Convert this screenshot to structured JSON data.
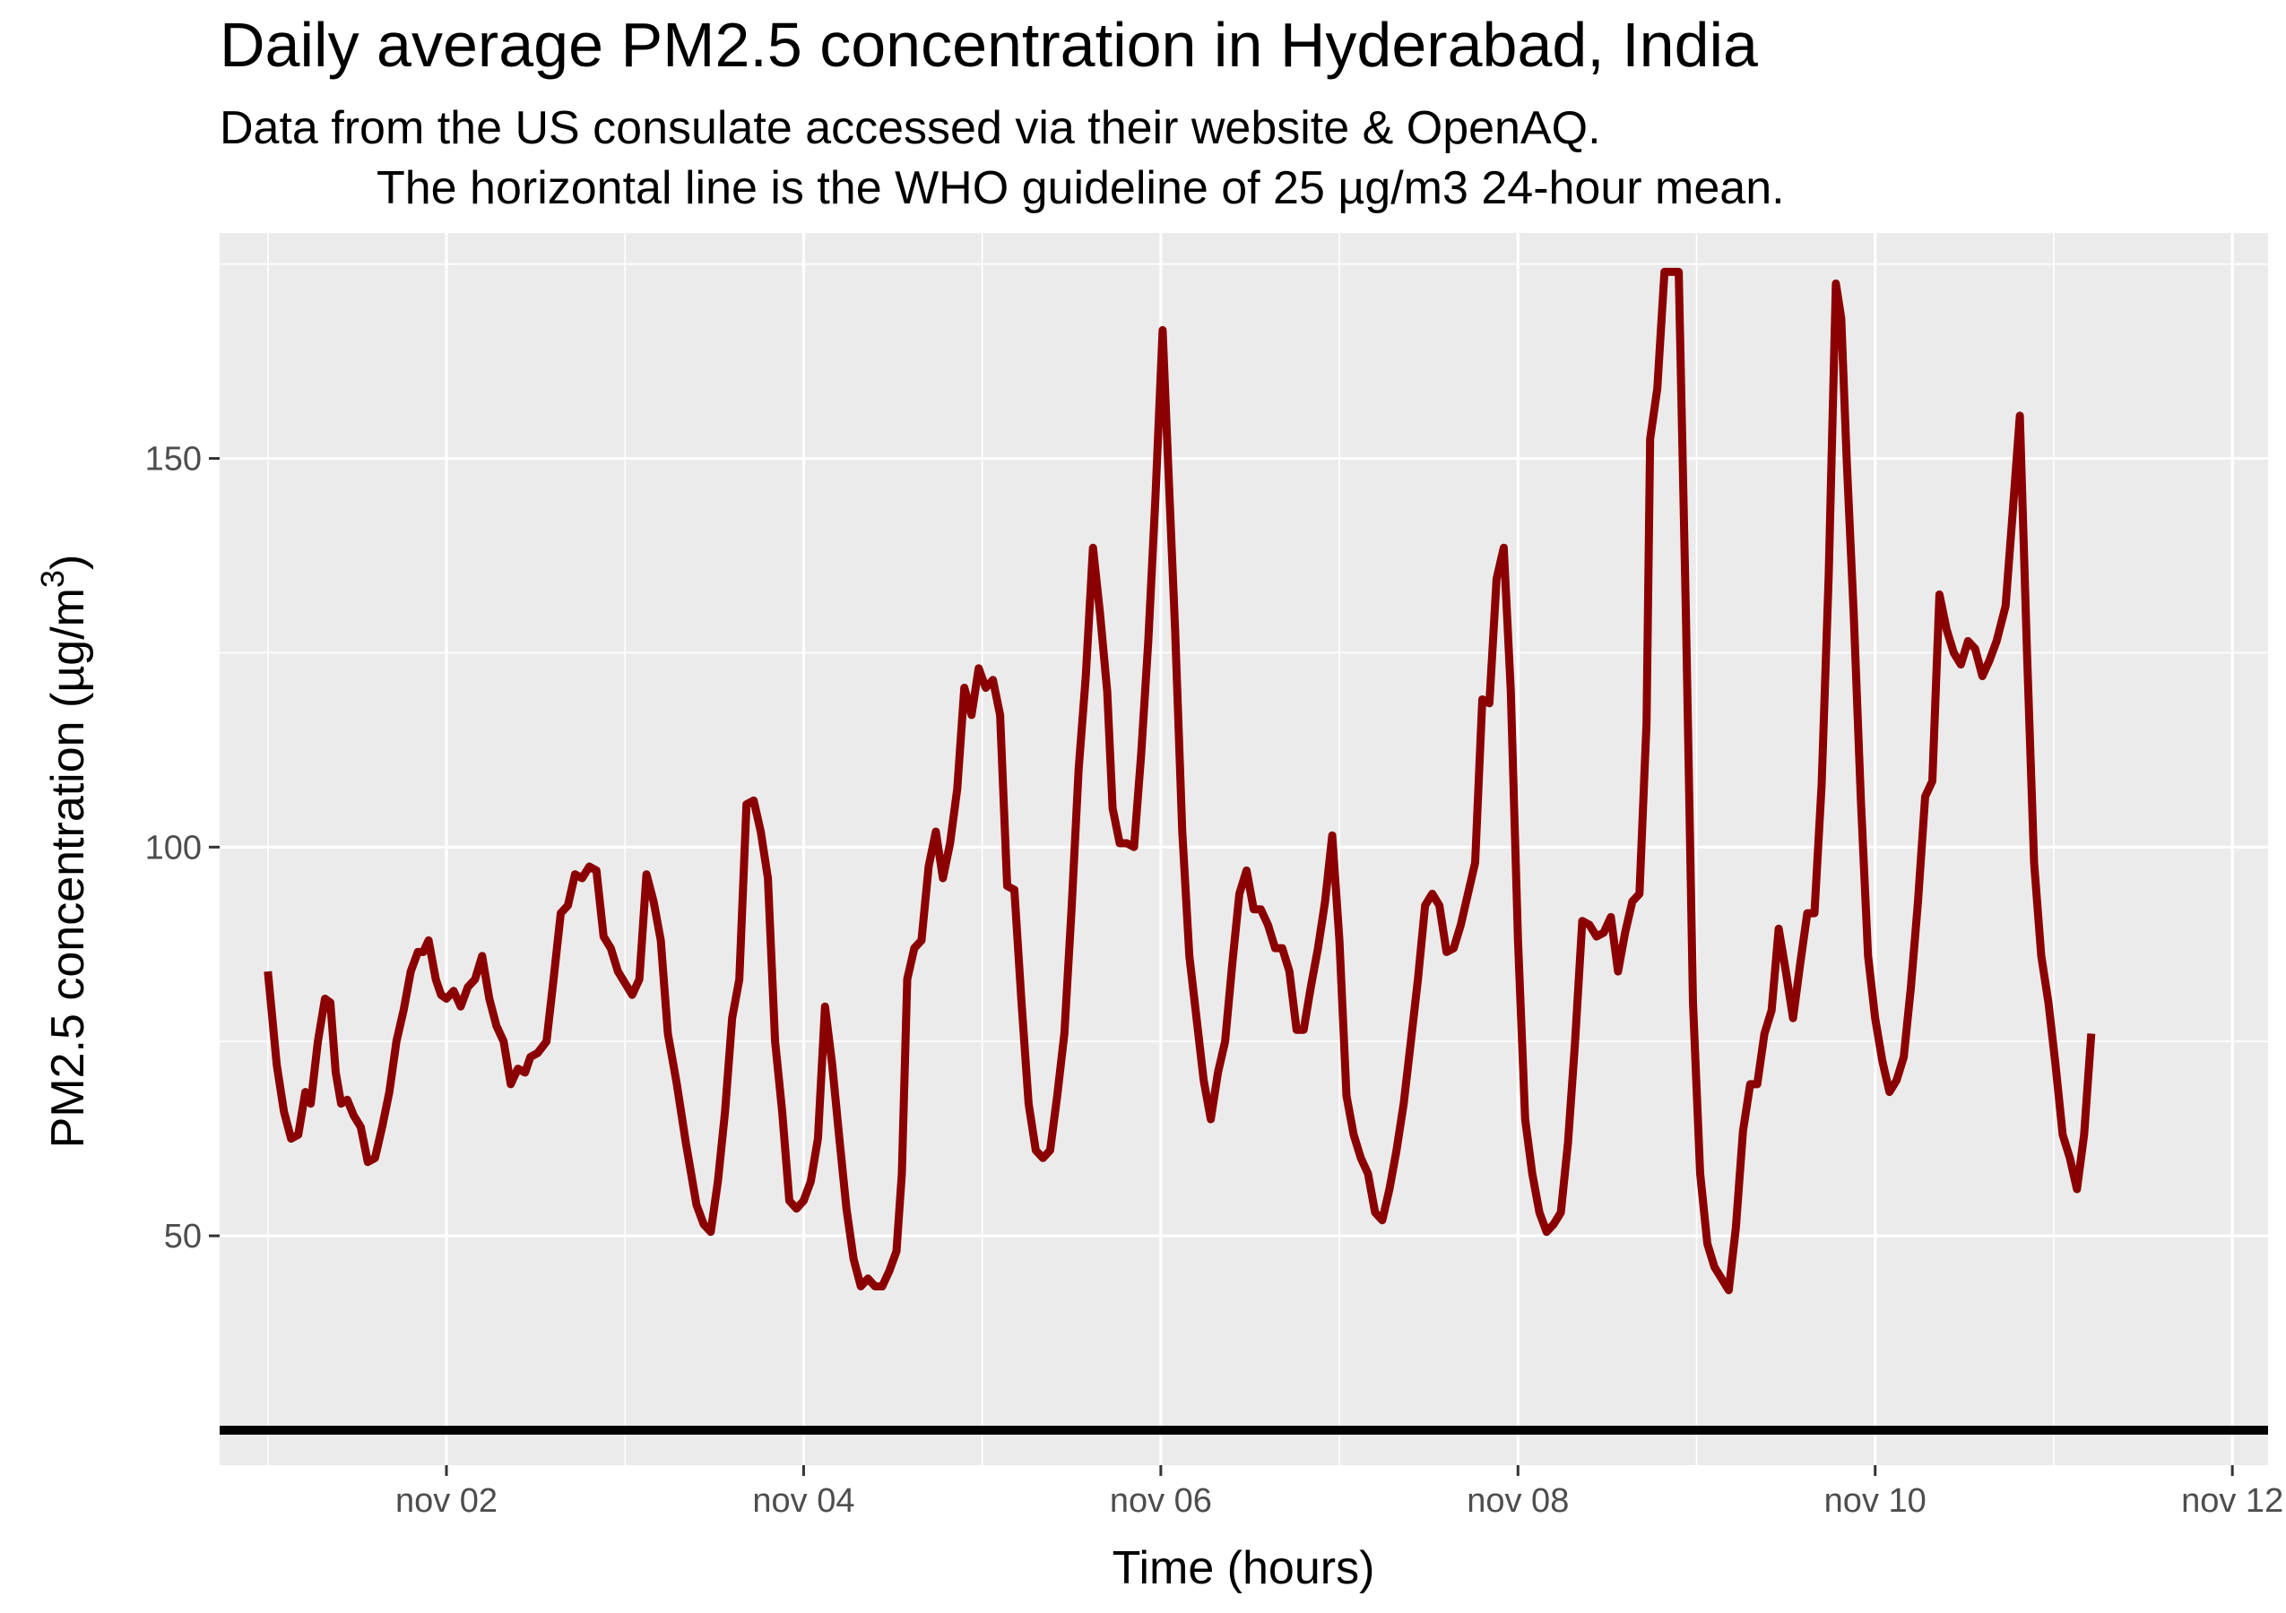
{
  "chart_data": {
    "type": "line",
    "title": "Daily average PM2.5 concentration in Hyderabad, India",
    "subtitle_lines": [
      "Data from the US consulate accessed via their website & OpenAQ.",
      "The horizontal line is the WHO guideline of 25 µg/m3 24-hour mean."
    ],
    "xlabel": "Time (hours)",
    "ylabel": "PM2.5 concentration (µg/m",
    "ylabel_superscript": "3",
    "ylabel_close": ")",
    "x_unit": "days since nov 01 00:00",
    "xlim": [
      -0.27,
      11.2
    ],
    "ylim": [
      20.5,
      179
    ],
    "x_ticks": [
      {
        "value": 1,
        "label": "nov 02"
      },
      {
        "value": 3,
        "label": "nov 04"
      },
      {
        "value": 5,
        "label": "nov 06"
      },
      {
        "value": 7,
        "label": "nov 08"
      },
      {
        "value": 9,
        "label": "nov 10"
      },
      {
        "value": 11,
        "label": "nov 12"
      }
    ],
    "y_ticks": [
      {
        "value": 50,
        "label": "50"
      },
      {
        "value": 100,
        "label": "100"
      },
      {
        "value": 150,
        "label": "150"
      }
    ],
    "reference_line": {
      "y": 25,
      "color": "#000000"
    },
    "series": [
      {
        "color": "#8b0000",
        "points": [
          [
            0.0,
            84
          ],
          [
            0.05,
            72
          ],
          [
            0.09,
            66
          ],
          [
            0.13,
            62.5
          ],
          [
            0.17,
            63
          ],
          [
            0.21,
            68.5
          ],
          [
            0.24,
            67
          ],
          [
            0.28,
            75
          ],
          [
            0.32,
            80.5
          ],
          [
            0.35,
            80
          ],
          [
            0.38,
            71
          ],
          [
            0.41,
            67
          ],
          [
            0.445,
            67.5
          ],
          [
            0.48,
            65.5
          ],
          [
            0.52,
            64
          ],
          [
            0.56,
            59.5
          ],
          [
            0.6,
            60
          ],
          [
            0.64,
            64
          ],
          [
            0.68,
            68.5
          ],
          [
            0.72,
            75
          ],
          [
            0.76,
            79
          ],
          [
            0.8,
            84
          ],
          [
            0.84,
            86.5
          ],
          [
            0.87,
            86.5
          ],
          [
            0.9,
            88
          ],
          [
            0.94,
            83
          ],
          [
            0.97,
            81
          ],
          [
            1.0,
            80.5
          ],
          [
            1.04,
            81.5
          ],
          [
            1.08,
            79.5
          ],
          [
            1.12,
            82
          ],
          [
            1.16,
            83
          ],
          [
            1.2,
            86
          ],
          [
            1.24,
            80.5
          ],
          [
            1.28,
            77
          ],
          [
            1.32,
            75
          ],
          [
            1.36,
            69.5
          ],
          [
            1.4,
            71.5
          ],
          [
            1.44,
            71
          ],
          [
            1.47,
            73
          ],
          [
            1.51,
            73.5
          ],
          [
            1.56,
            75
          ],
          [
            1.6,
            83
          ],
          [
            1.64,
            91.5
          ],
          [
            1.68,
            92.5
          ],
          [
            1.72,
            96.5
          ],
          [
            1.76,
            96
          ],
          [
            1.8,
            97.5
          ],
          [
            1.84,
            97
          ],
          [
            1.88,
            88.5
          ],
          [
            1.92,
            87
          ],
          [
            1.96,
            84
          ],
          [
            2.0,
            82.5
          ],
          [
            2.04,
            81
          ],
          [
            2.08,
            83
          ],
          [
            2.12,
            96.5
          ],
          [
            2.16,
            93
          ],
          [
            2.2,
            88
          ],
          [
            2.24,
            76
          ],
          [
            2.29,
            69.5
          ],
          [
            2.34,
            62
          ],
          [
            2.4,
            54
          ],
          [
            2.44,
            51.5
          ],
          [
            2.48,
            50.5
          ],
          [
            2.52,
            57
          ],
          [
            2.56,
            66
          ],
          [
            2.6,
            78
          ],
          [
            2.64,
            83
          ],
          [
            2.68,
            105.5
          ],
          [
            2.72,
            106
          ],
          [
            2.76,
            102
          ],
          [
            2.8,
            96
          ],
          [
            2.84,
            75
          ],
          [
            2.88,
            66
          ],
          [
            2.92,
            54.5
          ],
          [
            2.96,
            53.5
          ],
          [
            3.0,
            54.5
          ],
          [
            3.04,
            57
          ],
          [
            3.08,
            62.5
          ],
          [
            3.12,
            79.5
          ],
          [
            3.16,
            72
          ],
          [
            3.2,
            62.5
          ],
          [
            3.24,
            53.5
          ],
          [
            3.28,
            47
          ],
          [
            3.32,
            43.5
          ],
          [
            3.36,
            44.5
          ],
          [
            3.4,
            43.5
          ],
          [
            3.44,
            43.5
          ],
          [
            3.48,
            45.5
          ],
          [
            3.52,
            48
          ],
          [
            3.55,
            58
          ],
          [
            3.58,
            83
          ],
          [
            3.62,
            87
          ],
          [
            3.66,
            88
          ],
          [
            3.7,
            97.5
          ],
          [
            3.74,
            102
          ],
          [
            3.78,
            96
          ],
          [
            3.82,
            100.5
          ],
          [
            3.86,
            107.5
          ],
          [
            3.9,
            120.5
          ],
          [
            3.94,
            117
          ],
          [
            3.98,
            123
          ],
          [
            4.02,
            120.5
          ],
          [
            4.06,
            121.5
          ],
          [
            4.1,
            117
          ],
          [
            4.14,
            95
          ],
          [
            4.18,
            94.5
          ],
          [
            4.22,
            80
          ],
          [
            4.26,
            67
          ],
          [
            4.3,
            61
          ],
          [
            4.34,
            60
          ],
          [
            4.38,
            61
          ],
          [
            4.42,
            68
          ],
          [
            4.46,
            76
          ],
          [
            4.5,
            92
          ],
          [
            4.54,
            110
          ],
          [
            4.58,
            122
          ],
          [
            4.62,
            138.5
          ],
          [
            4.66,
            130
          ],
          [
            4.7,
            120
          ],
          [
            4.73,
            105
          ],
          [
            4.77,
            100.5
          ],
          [
            4.81,
            100.5
          ],
          [
            4.85,
            100
          ],
          [
            4.89,
            112
          ],
          [
            4.93,
            126.5
          ],
          [
            4.97,
            145
          ],
          [
            5.01,
            166.5
          ],
          [
            5.04,
            150
          ],
          [
            5.08,
            128
          ],
          [
            5.12,
            102
          ],
          [
            5.16,
            86
          ],
          [
            5.2,
            78
          ],
          [
            5.24,
            70
          ],
          [
            5.28,
            65
          ],
          [
            5.32,
            71
          ],
          [
            5.36,
            75
          ],
          [
            5.4,
            85
          ],
          [
            5.44,
            94
          ],
          [
            5.48,
            97
          ],
          [
            5.52,
            92
          ],
          [
            5.56,
            92
          ],
          [
            5.6,
            90
          ],
          [
            5.64,
            87
          ],
          [
            5.68,
            87
          ],
          [
            5.72,
            84
          ],
          [
            5.76,
            76.5
          ],
          [
            5.8,
            76.5
          ],
          [
            5.84,
            82
          ],
          [
            5.88,
            87
          ],
          [
            5.92,
            93
          ],
          [
            5.96,
            101.5
          ],
          [
            6.0,
            88
          ],
          [
            6.04,
            68
          ],
          [
            6.08,
            63
          ],
          [
            6.12,
            60
          ],
          [
            6.16,
            58
          ],
          [
            6.2,
            53
          ],
          [
            6.24,
            52
          ],
          [
            6.28,
            56
          ],
          [
            6.32,
            61
          ],
          [
            6.36,
            67
          ],
          [
            6.4,
            75
          ],
          [
            6.44,
            83
          ],
          [
            6.48,
            92.5
          ],
          [
            6.52,
            94
          ],
          [
            6.56,
            92.5
          ],
          [
            6.6,
            86.5
          ],
          [
            6.64,
            87
          ],
          [
            6.68,
            90
          ],
          [
            6.72,
            94
          ],
          [
            6.76,
            98
          ],
          [
            6.8,
            119
          ],
          [
            6.84,
            118.5
          ],
          [
            6.88,
            134.5
          ],
          [
            6.92,
            138.5
          ],
          [
            6.96,
            120
          ],
          [
            7.0,
            88
          ],
          [
            7.04,
            65
          ],
          [
            7.08,
            58
          ],
          [
            7.12,
            53
          ],
          [
            7.16,
            50.5
          ],
          [
            7.2,
            51.5
          ],
          [
            7.24,
            53
          ],
          [
            7.28,
            62
          ],
          [
            7.32,
            75
          ],
          [
            7.36,
            90.5
          ],
          [
            7.4,
            90
          ],
          [
            7.44,
            88.5
          ],
          [
            7.48,
            89
          ],
          [
            7.52,
            91
          ],
          [
            7.56,
            84
          ],
          [
            7.6,
            89
          ],
          [
            7.64,
            93
          ],
          [
            7.68,
            94
          ],
          [
            7.72,
            116
          ],
          [
            7.74,
            152.5
          ],
          [
            7.78,
            159
          ],
          [
            7.82,
            174
          ],
          [
            7.86,
            174
          ],
          [
            7.9,
            174
          ],
          [
            7.94,
            130
          ],
          [
            7.98,
            80
          ],
          [
            8.02,
            58
          ],
          [
            8.06,
            49
          ],
          [
            8.1,
            46
          ],
          [
            8.14,
            44.5
          ],
          [
            8.18,
            43
          ],
          [
            8.22,
            51
          ],
          [
            8.26,
            63.5
          ],
          [
            8.3,
            69.5
          ],
          [
            8.34,
            69.5
          ],
          [
            8.38,
            76
          ],
          [
            8.42,
            79
          ],
          [
            8.46,
            89.5
          ],
          [
            8.5,
            84
          ],
          [
            8.54,
            78
          ],
          [
            8.58,
            85
          ],
          [
            8.62,
            91.5
          ],
          [
            8.66,
            91.5
          ],
          [
            8.7,
            108
          ],
          [
            8.74,
            135
          ],
          [
            8.78,
            172.5
          ],
          [
            8.81,
            168
          ],
          [
            8.84,
            150
          ],
          [
            8.88,
            130
          ],
          [
            8.92,
            106
          ],
          [
            8.96,
            86
          ],
          [
            9.0,
            78
          ],
          [
            9.04,
            72.5
          ],
          [
            9.08,
            68.5
          ],
          [
            9.12,
            70
          ],
          [
            9.16,
            73
          ],
          [
            9.2,
            82
          ],
          [
            9.24,
            93
          ],
          [
            9.28,
            106.5
          ],
          [
            9.32,
            108.5
          ],
          [
            9.36,
            132.5
          ],
          [
            9.4,
            128
          ],
          [
            9.44,
            125
          ],
          [
            9.48,
            123.5
          ],
          [
            9.52,
            126.5
          ],
          [
            9.56,
            125.5
          ],
          [
            9.6,
            122
          ],
          [
            9.64,
            124
          ],
          [
            9.68,
            126.5
          ],
          [
            9.73,
            131
          ],
          [
            9.77,
            143
          ],
          [
            9.81,
            155.5
          ],
          [
            9.85,
            125
          ],
          [
            9.89,
            98
          ],
          [
            9.93,
            86
          ],
          [
            9.97,
            80
          ],
          [
            10.01,
            72
          ],
          [
            10.05,
            63
          ],
          [
            10.09,
            60
          ],
          [
            10.13,
            56
          ],
          [
            10.17,
            63
          ],
          [
            10.21,
            76
          ]
        ]
      }
    ]
  }
}
